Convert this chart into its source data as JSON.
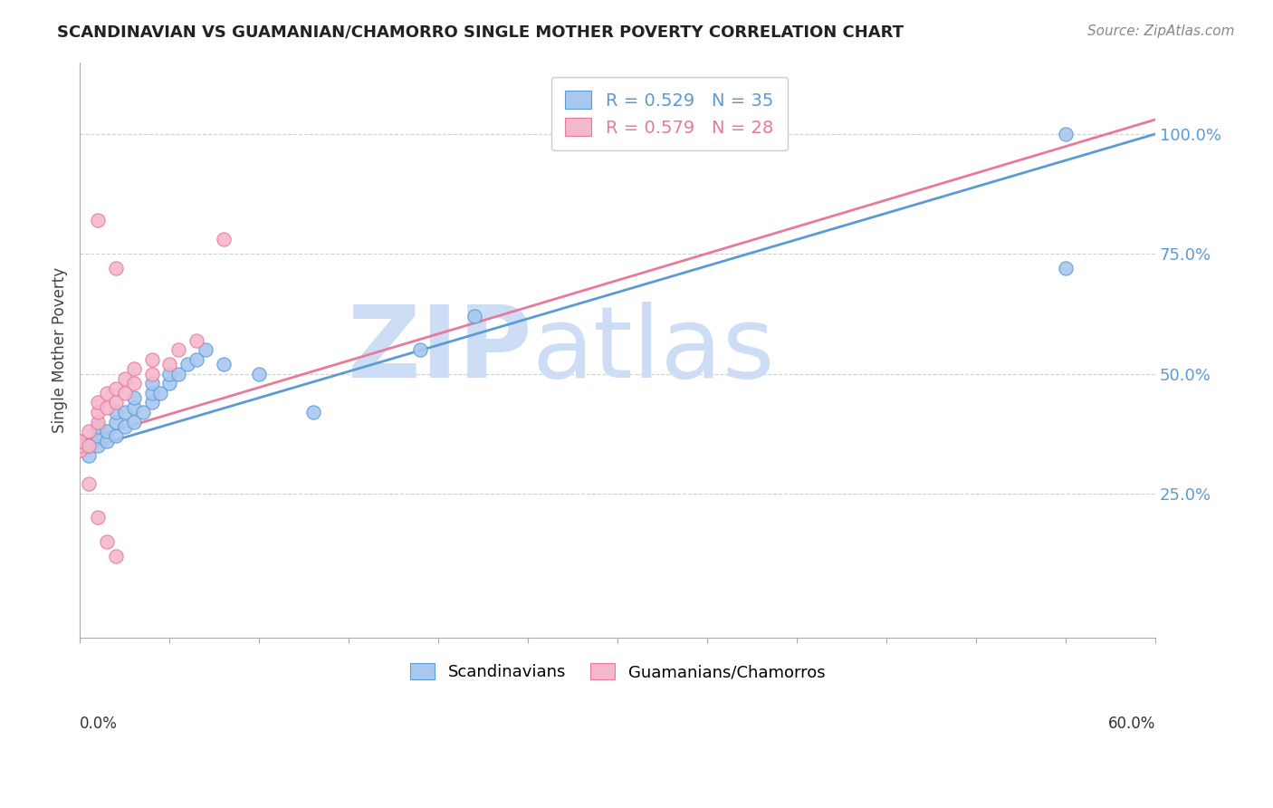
{
  "title": "SCANDINAVIAN VS GUAMANIAN/CHAMORRO SINGLE MOTHER POVERTY CORRELATION CHART",
  "source": "Source: ZipAtlas.com",
  "ylabel": "Single Mother Poverty",
  "y_ticks": [
    0.25,
    0.5,
    0.75,
    1.0
  ],
  "y_tick_labels": [
    "25.0%",
    "50.0%",
    "75.0%",
    "100.0%"
  ],
  "xlim": [
    0.0,
    0.6
  ],
  "ylim": [
    -0.05,
    1.15
  ],
  "r_scandinavian": 0.529,
  "n_scandinavian": 35,
  "r_guamanian": 0.579,
  "n_guamanian": 28,
  "color_scandinavian": "#a8c8f0",
  "color_guamanian": "#f4b8cc",
  "color_line_scandinavian": "#5b9bd5",
  "color_line_guamanian": "#e8799a",
  "watermark_color": "#ddeeff",
  "scandinavian_points": [
    [
      0.0,
      0.34
    ],
    [
      0.0,
      0.36
    ],
    [
      0.005,
      0.33
    ],
    [
      0.005,
      0.35
    ],
    [
      0.01,
      0.35
    ],
    [
      0.01,
      0.37
    ],
    [
      0.01,
      0.39
    ],
    [
      0.015,
      0.36
    ],
    [
      0.015,
      0.38
    ],
    [
      0.02,
      0.37
    ],
    [
      0.02,
      0.4
    ],
    [
      0.02,
      0.42
    ],
    [
      0.025,
      0.39
    ],
    [
      0.025,
      0.42
    ],
    [
      0.03,
      0.4
    ],
    [
      0.03,
      0.43
    ],
    [
      0.03,
      0.45
    ],
    [
      0.035,
      0.42
    ],
    [
      0.04,
      0.44
    ],
    [
      0.04,
      0.46
    ],
    [
      0.04,
      0.48
    ],
    [
      0.045,
      0.46
    ],
    [
      0.05,
      0.48
    ],
    [
      0.05,
      0.5
    ],
    [
      0.055,
      0.5
    ],
    [
      0.06,
      0.52
    ],
    [
      0.065,
      0.53
    ],
    [
      0.07,
      0.55
    ],
    [
      0.08,
      0.52
    ],
    [
      0.1,
      0.5
    ],
    [
      0.13,
      0.42
    ],
    [
      0.19,
      0.55
    ],
    [
      0.22,
      0.62
    ],
    [
      0.55,
      0.72
    ],
    [
      0.55,
      1.0
    ]
  ],
  "guamanian_points": [
    [
      0.0,
      0.34
    ],
    [
      0.0,
      0.35
    ],
    [
      0.0,
      0.36
    ],
    [
      0.005,
      0.35
    ],
    [
      0.005,
      0.38
    ],
    [
      0.01,
      0.4
    ],
    [
      0.01,
      0.42
    ],
    [
      0.01,
      0.44
    ],
    [
      0.015,
      0.43
    ],
    [
      0.015,
      0.46
    ],
    [
      0.02,
      0.44
    ],
    [
      0.02,
      0.47
    ],
    [
      0.025,
      0.46
    ],
    [
      0.025,
      0.49
    ],
    [
      0.03,
      0.48
    ],
    [
      0.03,
      0.51
    ],
    [
      0.04,
      0.5
    ],
    [
      0.04,
      0.53
    ],
    [
      0.05,
      0.52
    ],
    [
      0.055,
      0.55
    ],
    [
      0.065,
      0.57
    ],
    [
      0.08,
      0.78
    ],
    [
      0.01,
      0.82
    ],
    [
      0.02,
      0.72
    ],
    [
      0.005,
      0.27
    ],
    [
      0.01,
      0.2
    ],
    [
      0.015,
      0.15
    ],
    [
      0.02,
      0.12
    ]
  ],
  "line_scandinavian": [
    [
      0.0,
      0.34
    ],
    [
      0.6,
      1.0
    ]
  ],
  "line_guamanian": [
    [
      0.0,
      0.36
    ],
    [
      0.6,
      1.03
    ]
  ]
}
